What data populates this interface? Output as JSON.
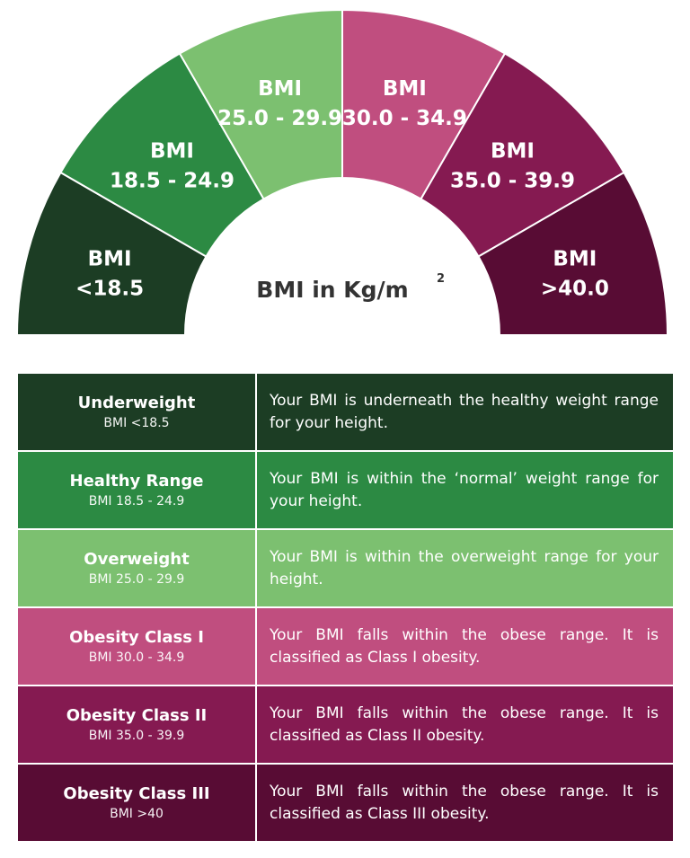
{
  "gauge": {
    "center_label": "BMI in Kg/m",
    "center_sup": "2",
    "segments": [
      {
        "line1": "BMI",
        "line2": "<18.5",
        "color": "#1c3d24"
      },
      {
        "line1": "BMI",
        "line2": "18.5 - 24.9",
        "color": "#2c8a43"
      },
      {
        "line1": "BMI",
        "line2": "25.0 - 29.9",
        "color": "#7cc070"
      },
      {
        "line1": "BMI",
        "line2": "30.0 - 34.9",
        "color": "#c04e7f"
      },
      {
        "line1": "BMI",
        "line2": "35.0 - 39.9",
        "color": "#851a51"
      },
      {
        "line1": "BMI",
        "line2": ">40.0",
        "color": "#580c34"
      }
    ]
  },
  "table": {
    "rows": [
      {
        "category": "Underweight",
        "range": "BMI <18.5",
        "description": "Your BMI is underneath the healthy weight range for your height.",
        "color": "#1c3d24"
      },
      {
        "category": "Healthy Range",
        "range": "BMI 18.5 - 24.9",
        "description": "Your BMI is within the ‘normal’ weight range for your height.",
        "color": "#2c8a43"
      },
      {
        "category": "Overweight",
        "range": "BMI 25.0 - 29.9",
        "description": "Your BMI is within the overweight range for your height.",
        "color": "#7cc070"
      },
      {
        "category": "Obesity Class I",
        "range": "BMI 30.0 - 34.9",
        "description": "Your BMI falls within the obese range. It is classified as Class I obesity.",
        "color": "#c04e7f"
      },
      {
        "category": "Obesity Class II",
        "range": "BMI 35.0 - 39.9",
        "description": "Your BMI falls within the obese range. It is classified as Class II obesity.",
        "color": "#851a51"
      },
      {
        "category": "Obesity Class III",
        "range": "BMI >40",
        "description": "Your BMI falls within the obese range. It is classified as Class III obesity.",
        "color": "#580c34"
      }
    ]
  }
}
